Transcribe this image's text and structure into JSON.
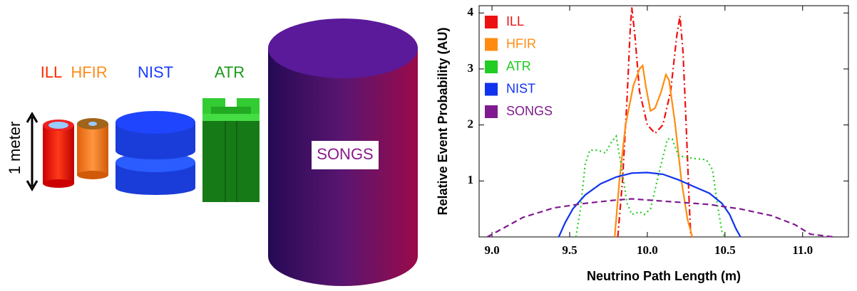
{
  "diagram": {
    "labels": {
      "ill": "ILL",
      "hfir": "HFIR",
      "nist": "NIST",
      "atr": "ATR",
      "scale": "1 meter",
      "songs": "SONGS"
    }
  },
  "chart_data": {
    "type": "line",
    "xlabel": "Neutrino Path Length (m)",
    "ylabel": "Relative Event Probability (AU)",
    "xlim": [
      8.917,
      11.295
    ],
    "ylim": [
      0,
      4.13
    ],
    "xticks": [
      {
        "value": 9,
        "label": "9.0"
      },
      9.5,
      {
        "value": 10,
        "label": "10.0"
      },
      10.5,
      {
        "value": 11,
        "label": "11.0"
      }
    ],
    "yticks": [
      1,
      2,
      3,
      4
    ],
    "legend": "upper-left",
    "series": [
      {
        "name": "ILL",
        "color": "#ee1111",
        "style": "dashdot",
        "x": [
          9.81,
          9.84,
          9.87,
          9.89,
          9.9,
          9.92,
          9.95,
          10.0,
          10.05,
          10.1,
          10.15,
          10.19,
          10.21,
          10.23,
          10.25,
          10.27,
          10.28
        ],
        "values": [
          0,
          1.0,
          2.5,
          3.7,
          4.1,
          3.6,
          2.6,
          2.0,
          1.85,
          2.0,
          2.6,
          3.6,
          3.95,
          3.3,
          2.0,
          0.6,
          0
        ]
      },
      {
        "name": "HFIR",
        "color": "#ff8c10",
        "style": "solid",
        "x": [
          9.79,
          9.82,
          9.86,
          9.91,
          9.95,
          9.97,
          9.99,
          10.02,
          10.05,
          10.09,
          10.12,
          10.14,
          10.18,
          10.22,
          10.26,
          10.29
        ],
        "values": [
          0,
          1.0,
          2.0,
          2.7,
          3.0,
          3.06,
          2.7,
          2.25,
          2.3,
          2.6,
          2.9,
          2.8,
          2.0,
          1.0,
          0.3,
          0
        ]
      },
      {
        "name": "ATR",
        "color": "#22cc22",
        "style": "dotted",
        "x": [
          9.54,
          9.57,
          9.6,
          9.63,
          9.68,
          9.73,
          9.77,
          9.8,
          9.83,
          9.87,
          9.9,
          9.95,
          9.98,
          10.02,
          10.08,
          10.13,
          10.16,
          10.2,
          10.3,
          10.38,
          10.42,
          10.45,
          10.48,
          10.5
        ],
        "values": [
          0,
          0.5,
          1.3,
          1.55,
          1.55,
          1.5,
          1.7,
          1.8,
          1.3,
          0.6,
          0.4,
          0.45,
          0.4,
          0.5,
          1.2,
          1.75,
          1.75,
          1.45,
          1.4,
          1.38,
          1.2,
          0.6,
          0.1,
          0
        ]
      },
      {
        "name": "NIST",
        "color": "#1133ee",
        "style": "solid",
        "x": [
          9.43,
          9.47,
          9.52,
          9.6,
          9.7,
          9.8,
          9.9,
          10.0,
          10.1,
          10.2,
          10.3,
          10.4,
          10.48,
          10.53,
          10.57,
          10.6
        ],
        "values": [
          0,
          0.25,
          0.5,
          0.75,
          0.95,
          1.07,
          1.14,
          1.15,
          1.12,
          1.02,
          0.9,
          0.78,
          0.6,
          0.4,
          0.15,
          0
        ]
      },
      {
        "name": "SONGS",
        "color": "#801a90",
        "style": "dashed",
        "x": [
          8.97,
          9.2,
          9.4,
          9.6,
          9.8,
          9.9,
          10.0,
          10.2,
          10.4,
          10.6,
          10.8,
          10.95,
          11.05,
          11.2
        ],
        "values": [
          0,
          0.35,
          0.52,
          0.6,
          0.66,
          0.68,
          0.66,
          0.62,
          0.58,
          0.5,
          0.38,
          0.22,
          0.05,
          0
        ]
      }
    ]
  }
}
